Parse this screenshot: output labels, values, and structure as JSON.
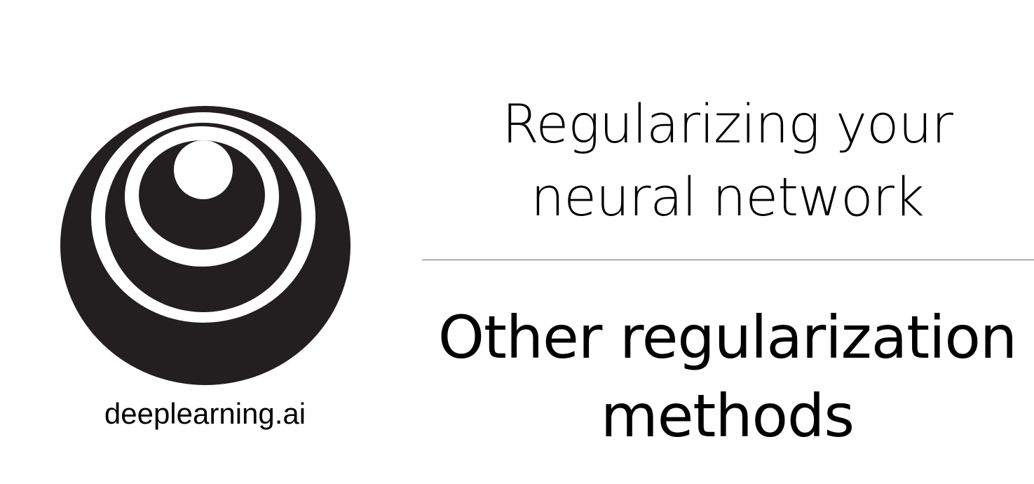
{
  "logo": {
    "wordmark": "deeplearning.ai",
    "icon": "concentric-circles-logo-icon"
  },
  "title": {
    "line1": "Regularizing your",
    "line2": "neural network"
  },
  "subtitle": {
    "line1": "Other regularization",
    "line2": "methods"
  },
  "colors": {
    "background": "#ffffff",
    "text": "#000000",
    "logo": "#231f20",
    "divider": "#6b6b6b"
  }
}
